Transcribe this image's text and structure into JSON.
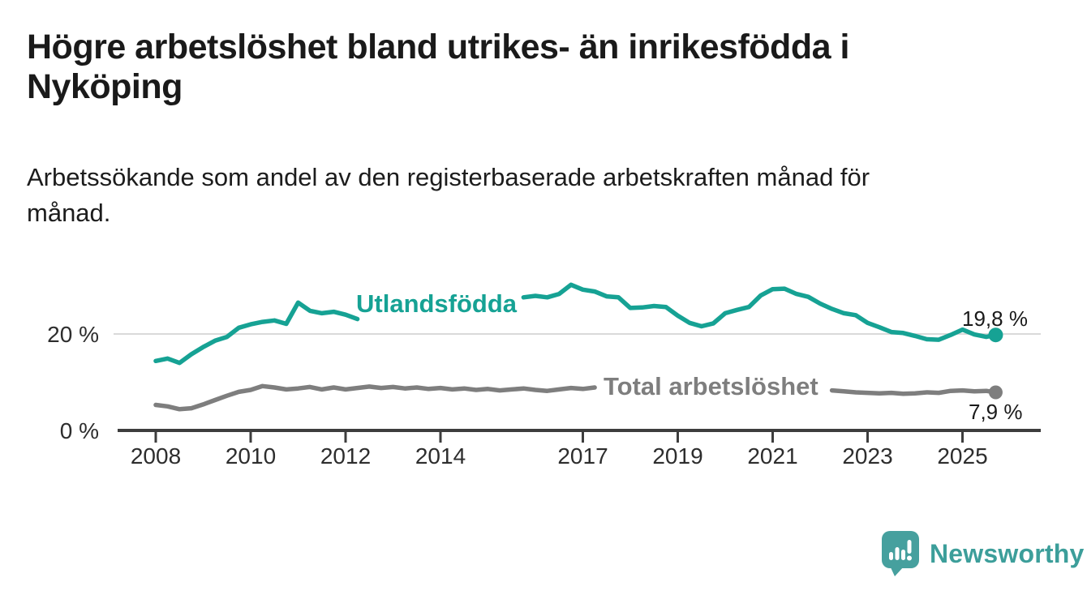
{
  "title": {
    "line1": "Högre arbetslöshet bland utrikes- än inrikesfödda i",
    "line2": "Nyköping"
  },
  "subtitle": {
    "line1": "Arbetssökande som andel av den registerbaserade arbetskraften månad för",
    "line2": "månad."
  },
  "branding": {
    "wordmark": "Newsworthy",
    "logo_icon": "speech-bubble-bar-chart-icon",
    "brand_color": "#3c9e9a",
    "logo_bubble_color": "#46a09e"
  },
  "chart_data": {
    "type": "line",
    "title": "Högre arbetslöshet bland utrikes- än inrikesfödda i Nyköping",
    "subtitle": "Arbetssökande som andel av den registerbaserade arbetskraften månad för månad.",
    "grid": "horizontal-20-only",
    "legend_position": "inline-on-line",
    "x_axis": {
      "tick_years": [
        2008,
        2010,
        2012,
        2014,
        2017,
        2019,
        2021,
        2023,
        2025
      ],
      "range": [
        2007.2,
        2026.6
      ],
      "axis_color": "#3d3d3d"
    },
    "y_axis": {
      "tick_labels": [
        "20 %",
        "0 %"
      ],
      "tick_values": [
        20,
        0
      ],
      "gridline_at": 20,
      "range": [
        0,
        33
      ],
      "gridline_color": "#d9d9d9"
    },
    "x": [
      2008,
      2008.25,
      2008.5,
      2008.75,
      2009,
      2009.25,
      2009.5,
      2009.75,
      2010,
      2010.25,
      2010.5,
      2010.75,
      2011,
      2011.25,
      2011.5,
      2011.75,
      2012,
      2012.25,
      2012.5,
      2012.75,
      2013,
      2013.25,
      2013.5,
      2013.75,
      2014,
      2014.25,
      2014.5,
      2014.75,
      2015,
      2015.25,
      2015.5,
      2015.75,
      2016,
      2016.25,
      2016.5,
      2016.75,
      2017,
      2017.25,
      2017.5,
      2017.75,
      2018,
      2018.25,
      2018.5,
      2018.75,
      2019,
      2019.25,
      2019.5,
      2019.75,
      2020,
      2020.25,
      2020.5,
      2020.75,
      2021,
      2021.25,
      2021.5,
      2021.75,
      2022,
      2022.25,
      2022.5,
      2022.75,
      2023,
      2023.25,
      2023.5,
      2023.75,
      2024,
      2024.25,
      2024.5,
      2024.75,
      2025,
      2025.25,
      2025.5,
      2025.7
    ],
    "series": [
      {
        "name": "Utlandsfödda",
        "color": "#16a294",
        "end_label": "19,8 %",
        "end_value": 19.8,
        "values": [
          14.4,
          14.9,
          14.0,
          15.8,
          17.3,
          18.6,
          19.4,
          21.3,
          22.0,
          22.5,
          22.8,
          22.1,
          26.5,
          24.8,
          24.3,
          24.6,
          24.0,
          23.1,
          23.6,
          24.0,
          24.4,
          24.8,
          25.1,
          25.4,
          25.7,
          26.0,
          26.2,
          26.5,
          26.8,
          27.0,
          27.3,
          27.6,
          27.9,
          27.6,
          28.3,
          30.2,
          29.2,
          28.8,
          27.8,
          27.6,
          25.4,
          25.5,
          25.8,
          25.6,
          23.8,
          22.3,
          21.6,
          22.2,
          24.3,
          25.0,
          25.6,
          28.0,
          29.3,
          29.4,
          28.3,
          27.7,
          26.3,
          25.2,
          24.3,
          23.9,
          22.3,
          21.4,
          20.4,
          20.2,
          19.6,
          18.9,
          18.8,
          19.8,
          20.9,
          19.9,
          19.4,
          19.8
        ]
      },
      {
        "name": "Total arbetslöshet",
        "color": "#7e7e7e",
        "end_label": "7,9 %",
        "end_value": 7.9,
        "values": [
          5.3,
          5.0,
          4.4,
          4.6,
          5.4,
          6.3,
          7.2,
          8.0,
          8.4,
          9.2,
          8.9,
          8.5,
          8.7,
          9.0,
          8.5,
          8.9,
          8.5,
          8.8,
          9.1,
          8.8,
          9.0,
          8.7,
          8.9,
          8.6,
          8.8,
          8.5,
          8.7,
          8.4,
          8.6,
          8.3,
          8.5,
          8.7,
          8.4,
          8.2,
          8.5,
          8.8,
          8.6,
          8.9,
          8.6,
          8.3,
          8.2,
          8.4,
          8.1,
          7.9,
          7.8,
          7.6,
          7.8,
          8.0,
          8.3,
          8.9,
          9.2,
          9.0,
          8.8,
          8.6,
          8.4,
          8.2,
          8.1,
          8.3,
          8.1,
          7.9,
          7.8,
          7.7,
          7.8,
          7.6,
          7.7,
          7.9,
          7.8,
          8.2,
          8.3,
          8.1,
          8.2,
          7.9
        ]
      }
    ]
  }
}
